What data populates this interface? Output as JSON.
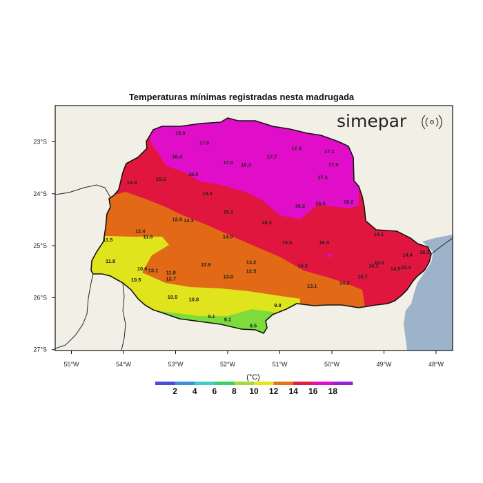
{
  "title": "Temperaturas mínimas registradas nesta madrugada",
  "brand": "simepar",
  "lon_ticks": [
    "55°W",
    "54°W",
    "53°W",
    "52°W",
    "51°W",
    "50°W",
    "49°W",
    "48°W"
  ],
  "lat_ticks": [
    "23°S",
    "24°S",
    "25°S",
    "26°S",
    "27°S"
  ],
  "colorbar": {
    "unit": "(°C)",
    "tick_labels": [
      "2",
      "4",
      "6",
      "8",
      "10",
      "12",
      "14",
      "16",
      "18"
    ],
    "colors": [
      "#4b4bdc",
      "#3f8fdc",
      "#3ccfc8",
      "#3ccf6a",
      "#9fdc3c",
      "#e6e61e",
      "#e67318",
      "#e61e46",
      "#e00fc8",
      "#9a1edc"
    ]
  },
  "region_colors": {
    "lt_10": "#7ddc3c",
    "10_12": "#e0e41c",
    "12_14": "#e26a16",
    "14_16": "#e0163f",
    "gt_16": "#e00ec8",
    "land": "#f2f0e6",
    "ocean": "#9db3c9"
  },
  "stations": [
    {
      "v": "15.9",
      "lon": -52.91,
      "lat": -22.87
    },
    {
      "v": "17.0",
      "lon": -52.45,
      "lat": -23.05
    },
    {
      "v": "16.4",
      "lon": -52.97,
      "lat": -23.32
    },
    {
      "v": "17.4",
      "lon": -50.68,
      "lat": -23.16
    },
    {
      "v": "17.1",
      "lon": -50.05,
      "lat": -23.22
    },
    {
      "v": "17.7",
      "lon": -51.15,
      "lat": -23.32
    },
    {
      "v": "17.0",
      "lon": -51.99,
      "lat": -23.43
    },
    {
      "v": "16.3",
      "lon": -51.65,
      "lat": -23.48
    },
    {
      "v": "17.6",
      "lon": -49.97,
      "lat": -23.47
    },
    {
      "v": "16.0",
      "lon": -52.66,
      "lat": -23.66
    },
    {
      "v": "15.6",
      "lon": -53.28,
      "lat": -23.75
    },
    {
      "v": "14.3",
      "lon": -53.84,
      "lat": -23.82
    },
    {
      "v": "17.3",
      "lon": -50.18,
      "lat": -23.72
    },
    {
      "v": "15.3",
      "lon": -52.39,
      "lat": -24.03
    },
    {
      "v": "16.2",
      "lon": -50.61,
      "lat": -24.27
    },
    {
      "v": "15.5",
      "lon": -50.22,
      "lat": -24.22
    },
    {
      "v": "16.2",
      "lon": -49.68,
      "lat": -24.19
    },
    {
      "v": "15.1",
      "lon": -51.99,
      "lat": -24.38
    },
    {
      "v": "12.9",
      "lon": -52.97,
      "lat": -24.53
    },
    {
      "v": "14.3",
      "lon": -52.75,
      "lat": -24.55
    },
    {
      "v": "16.2",
      "lon": -51.25,
      "lat": -24.59
    },
    {
      "v": "12.4",
      "lon": -53.68,
      "lat": -24.75
    },
    {
      "v": "14.1",
      "lon": -49.1,
      "lat": -24.81
    },
    {
      "v": "11.5",
      "lon": -54.3,
      "lat": -24.92
    },
    {
      "v": "11.5",
      "lon": -53.53,
      "lat": -24.86
    },
    {
      "v": "14.0",
      "lon": -52.0,
      "lat": -24.86
    },
    {
      "v": "15.5",
      "lon": -50.86,
      "lat": -24.97
    },
    {
      "v": "16.3",
      "lon": -50.15,
      "lat": -24.97
    },
    {
      "v": "11.8",
      "lon": -54.25,
      "lat": -25.33
    },
    {
      "v": "13.2",
      "lon": -51.55,
      "lat": -25.35
    },
    {
      "v": "14.4",
      "lon": -48.55,
      "lat": -25.21
    },
    {
      "v": "15.3",
      "lon": -48.22,
      "lat": -25.16
    },
    {
      "v": "16.0",
      "lon": -49.09,
      "lat": -25.36
    },
    {
      "v": "12.9",
      "lon": -52.42,
      "lat": -25.4
    },
    {
      "v": "15.2",
      "lon": -50.56,
      "lat": -25.42
    },
    {
      "v": "16.1",
      "lon": -49.2,
      "lat": -25.42
    },
    {
      "v": "14.5",
      "lon": -48.78,
      "lat": -25.48
    },
    {
      "v": "15.3",
      "lon": -48.58,
      "lat": -25.45
    },
    {
      "v": "10.6",
      "lon": -53.64,
      "lat": -25.48
    },
    {
      "v": "13.1",
      "lon": -53.43,
      "lat": -25.51
    },
    {
      "v": "11.8",
      "lon": -53.09,
      "lat": -25.55
    },
    {
      "v": "12.5",
      "lon": -51.55,
      "lat": -25.52
    },
    {
      "v": "10.5",
      "lon": -53.76,
      "lat": -25.69
    },
    {
      "v": "12.7",
      "lon": -53.09,
      "lat": -25.67
    },
    {
      "v": "13.0",
      "lon": -51.99,
      "lat": -25.63
    },
    {
      "v": "15.7",
      "lon": -49.41,
      "lat": -25.63
    },
    {
      "v": "14.2",
      "lon": -49.76,
      "lat": -25.75
    },
    {
      "v": "13.1",
      "lon": -50.38,
      "lat": -25.81
    },
    {
      "v": "10.5",
      "lon": -53.06,
      "lat": -26.02
    },
    {
      "v": "10.8",
      "lon": -52.65,
      "lat": -26.07
    },
    {
      "v": "9.8",
      "lon": -51.04,
      "lat": -26.18
    },
    {
      "v": "9.1",
      "lon": -52.31,
      "lat": -26.39
    },
    {
      "v": "9.1",
      "lon": -52.0,
      "lat": -26.45
    },
    {
      "v": "8.5",
      "lon": -51.51,
      "lat": -26.57
    }
  ]
}
